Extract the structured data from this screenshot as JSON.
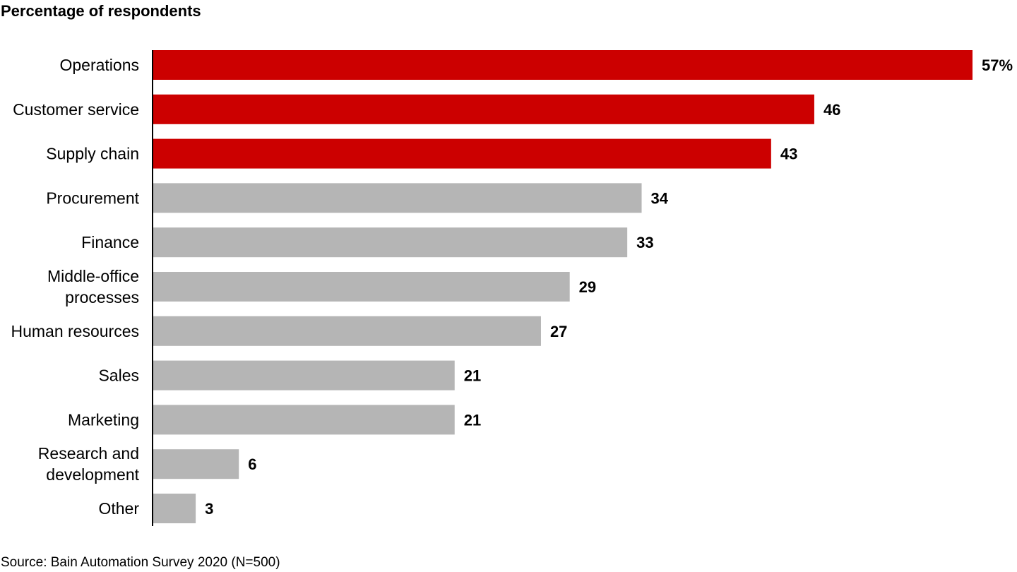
{
  "chart_data": {
    "type": "bar",
    "orientation": "horizontal",
    "title": "Percentage of respondents",
    "source": "Source: Bain Automation Survey 2020 (N=500)",
    "categories": [
      "Operations",
      "Customer service",
      "Supply chain",
      "Procurement",
      "Finance",
      "Middle-office processes",
      "Human resources",
      "Sales",
      "Marketing",
      "Research and development",
      "Other"
    ],
    "category_lines": [
      [
        "Operations"
      ],
      [
        "Customer service"
      ],
      [
        "Supply chain"
      ],
      [
        "Procurement"
      ],
      [
        "Finance"
      ],
      [
        "Middle-office",
        "processes"
      ],
      [
        "Human resources"
      ],
      [
        "Sales"
      ],
      [
        "Marketing"
      ],
      [
        "Research and",
        "development"
      ],
      [
        "Other"
      ]
    ],
    "values": [
      57,
      46,
      43,
      34,
      33,
      29,
      27,
      21,
      21,
      6,
      3
    ],
    "value_labels": [
      "57%",
      "46",
      "43",
      "34",
      "33",
      "29",
      "27",
      "21",
      "21",
      "6",
      "3"
    ],
    "highlighted": [
      true,
      true,
      true,
      false,
      false,
      false,
      false,
      false,
      false,
      false,
      false
    ],
    "colors": {
      "highlight": "#cc0000",
      "default": "#b5b5b5",
      "axis": "#000000"
    },
    "xlim": [
      0,
      57
    ],
    "grid": false,
    "legend": "none"
  }
}
